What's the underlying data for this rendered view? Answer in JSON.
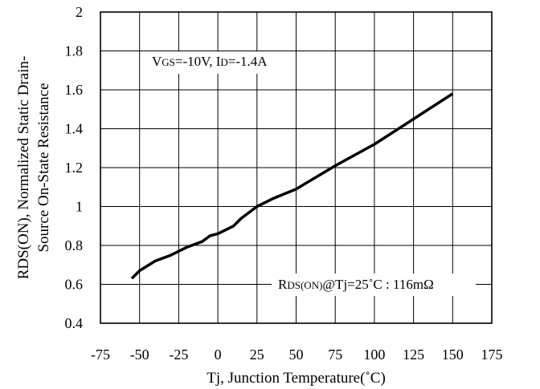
{
  "chart_data": {
    "type": "line",
    "xlabel": "Tj, Junction Temperature(˚C)",
    "ylabel_line1": "RDS(ON), Normalized Static Drain-",
    "ylabel_line2": "Source On-State Resistance",
    "xlim": [
      -75,
      175
    ],
    "ylim": [
      0.4,
      2
    ],
    "x_ticks": [
      -75,
      -50,
      -25,
      0,
      25,
      50,
      75,
      100,
      125,
      150,
      175
    ],
    "y_ticks": [
      0.4,
      0.6,
      0.8,
      1,
      1.2,
      1.4,
      1.6,
      1.8,
      2
    ],
    "y_tick_labels": [
      "0.4",
      "0.6",
      "0.8",
      "1",
      "1.2",
      "1.4",
      "1.6",
      "1.8",
      "2"
    ],
    "grid": true,
    "series": [
      {
        "x": [
          -55,
          -50,
          -40,
          -30,
          -20,
          -10,
          -5,
          0,
          10,
          15,
          25,
          35,
          50,
          75,
          100,
          125,
          150
        ],
        "y": [
          0.63,
          0.67,
          0.72,
          0.75,
          0.79,
          0.82,
          0.85,
          0.86,
          0.9,
          0.94,
          1.0,
          1.04,
          1.09,
          1.21,
          1.32,
          1.45,
          1.58
        ],
        "color": "#000000"
      }
    ],
    "annotations": {
      "conditions": {
        "v_main": "V",
        "v_sub": "GS",
        "v_value": "=-10V, I",
        "i_sub": "D",
        "i_value": "=-1.4A"
      },
      "rdson": {
        "r_main": "R",
        "r_sub": "DS(ON)",
        "rest": "@Tj=25˚C : 116mΩ"
      }
    }
  }
}
